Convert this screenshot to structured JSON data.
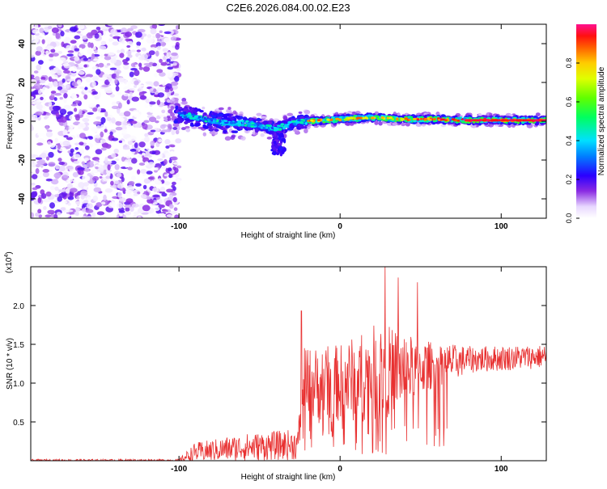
{
  "title": "C2E6.2026.084.00.02.E23",
  "chart_data": [
    {
      "type": "heatmap",
      "xlabel": "Height of straight line (km)",
      "ylabel": "Frequency (Hz)",
      "xlim": [
        -192,
        128
      ],
      "ylim": [
        -50,
        50
      ],
      "xticks": [
        -100,
        0,
        100
      ],
      "xtick_labels": [
        "-100",
        "0",
        "100"
      ],
      "yticks": [
        -40,
        -20,
        0,
        20,
        40
      ],
      "ytick_labels": [
        "-40",
        "-20",
        "0",
        "20",
        "40"
      ],
      "noise_region": [
        -192,
        -100
      ],
      "ridge": [
        {
          "x": -100,
          "y": 4
        },
        {
          "x": -90,
          "y": 2
        },
        {
          "x": -80,
          "y": 0
        },
        {
          "x": -70,
          "y": -1
        },
        {
          "x": -60,
          "y": -1
        },
        {
          "x": -50,
          "y": -2
        },
        {
          "x": -40,
          "y": -4
        },
        {
          "x": -30,
          "y": -1
        },
        {
          "x": -20,
          "y": 0
        },
        {
          "x": 0,
          "y": 1
        },
        {
          "x": 20,
          "y": 2
        },
        {
          "x": 40,
          "y": 1
        },
        {
          "x": 60,
          "y": 1
        },
        {
          "x": 80,
          "y": 0.5
        },
        {
          "x": 100,
          "y": 0.5
        },
        {
          "x": 128,
          "y": 0.5
        }
      ],
      "colorbar": {
        "label": "Normalized spectral amplitude",
        "range": [
          0,
          1
        ],
        "ticks": [
          0.0,
          0.2,
          0.4,
          0.6,
          0.8
        ],
        "tick_labels": [
          "0.0",
          "0.2",
          "0.4",
          "0.6",
          "0.8"
        ]
      }
    },
    {
      "type": "line",
      "xlabel": "Height of straight line (km)",
      "ylabel": "SNR (10 * v/v)",
      "scale_label": "(x10",
      "scale_exp": "4",
      "scale_close": ")",
      "xlim": [
        -192,
        128
      ],
      "ylim": [
        0,
        2.5
      ],
      "xticks": [
        -100,
        0,
        100
      ],
      "xtick_labels": [
        "-100",
        "0",
        "100"
      ],
      "yticks": [
        0.5,
        1.0,
        1.5,
        2.0
      ],
      "ytick_labels": [
        "0.5",
        "1.0",
        "1.5",
        "2.0"
      ],
      "series_color": "#e83030",
      "envelope": [
        {
          "x": -192,
          "base": 0.0,
          "amp": 0.03
        },
        {
          "x": -100,
          "base": 0.0,
          "amp": 0.03
        },
        {
          "x": -90,
          "base": 0.07,
          "amp": 0.25
        },
        {
          "x": -60,
          "base": 0.12,
          "amp": 0.35
        },
        {
          "x": -26,
          "base": 0.15,
          "amp": 0.4
        },
        {
          "x": -23,
          "base": 0.8,
          "amp": 1.0
        },
        {
          "x": 0,
          "base": 0.85,
          "amp": 1.0
        },
        {
          "x": 25,
          "base": 0.95,
          "amp": 1.3
        },
        {
          "x": 50,
          "base": 1.1,
          "amp": 0.7
        },
        {
          "x": 80,
          "base": 1.25,
          "amp": 0.35
        },
        {
          "x": 128,
          "base": 1.3,
          "amp": 0.3
        }
      ],
      "peaks": [
        {
          "x": -24,
          "y": 1.93
        },
        {
          "x": 28,
          "y": 2.52
        },
        {
          "x": 36,
          "y": 2.36
        },
        {
          "x": 48,
          "y": 2.3
        }
      ]
    }
  ],
  "colors": {
    "accent": "#e83030",
    "frame": "#000000"
  }
}
